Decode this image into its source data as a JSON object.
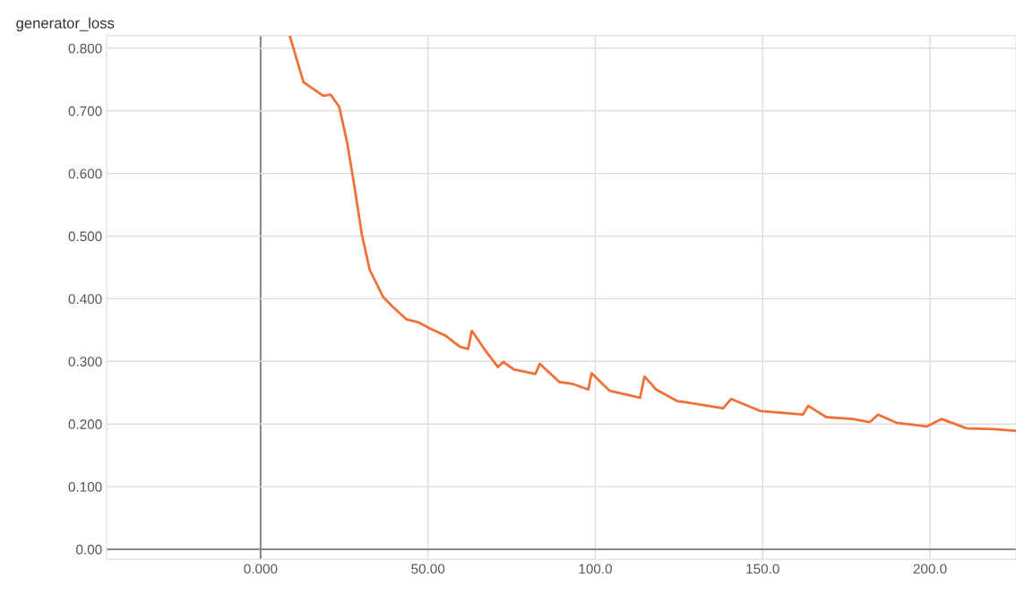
{
  "chart_data": {
    "type": "line",
    "title": "generator_loss",
    "x": [
      8.8,
      12.8,
      18.7,
      20.9,
      23.5,
      25.9,
      28,
      30.2,
      32.6,
      36.6,
      39.3,
      43.6,
      47.3,
      50.8,
      55.3,
      59.6,
      62,
      63.1,
      66.8,
      70.9,
      72.5,
      75.7,
      79.4,
      82.1,
      83.4,
      89.3,
      93.3,
      97.9,
      98.9,
      104.3,
      113.4,
      114.7,
      118.2,
      124.3,
      138.2,
      140.6,
      149.2,
      162,
      163.6,
      169,
      177,
      182,
      184.5,
      190,
      199,
      203.5,
      211,
      219,
      225.7
    ],
    "series": [
      {
        "color": "#f0703a",
        "values": [
          0.818,
          0.746,
          0.724,
          0.726,
          0.706,
          0.648,
          0.58,
          0.504,
          0.446,
          0.403,
          0.388,
          0.367,
          0.362,
          0.352,
          0.341,
          0.323,
          0.32,
          0.349,
          0.32,
          0.291,
          0.299,
          0.287,
          0.283,
          0.28,
          0.296,
          0.267,
          0.264,
          0.255,
          0.281,
          0.253,
          0.242,
          0.276,
          0.255,
          0.237,
          0.225,
          0.24,
          0.221,
          0.215,
          0.229,
          0.211,
          0.208,
          0.203,
          0.215,
          0.202,
          0.196,
          0.208,
          0.193,
          0.192,
          0.189
        ]
      }
    ],
    "xlim": [
      -46,
      225.7
    ],
    "ylim": [
      -0.016,
      0.82
    ],
    "xticks": [
      {
        "value": 0,
        "label": "0.000"
      },
      {
        "value": 50,
        "label": "50.00"
      },
      {
        "value": 100,
        "label": "100.0"
      },
      {
        "value": 150,
        "label": "150.0"
      },
      {
        "value": 200,
        "label": "200.0"
      }
    ],
    "yticks": [
      {
        "value": 0,
        "label": "0.00"
      },
      {
        "value": 0.1,
        "label": "0.100"
      },
      {
        "value": 0.2,
        "label": "0.200"
      },
      {
        "value": 0.3,
        "label": "0.300"
      },
      {
        "value": 0.4,
        "label": "0.400"
      },
      {
        "value": 0.5,
        "label": "0.500"
      },
      {
        "value": 0.6,
        "label": "0.600"
      },
      {
        "value": 0.7,
        "label": "0.700"
      },
      {
        "value": 0.8,
        "label": "0.800"
      }
    ],
    "grid": true,
    "line_style": "solid",
    "marker": "none"
  }
}
